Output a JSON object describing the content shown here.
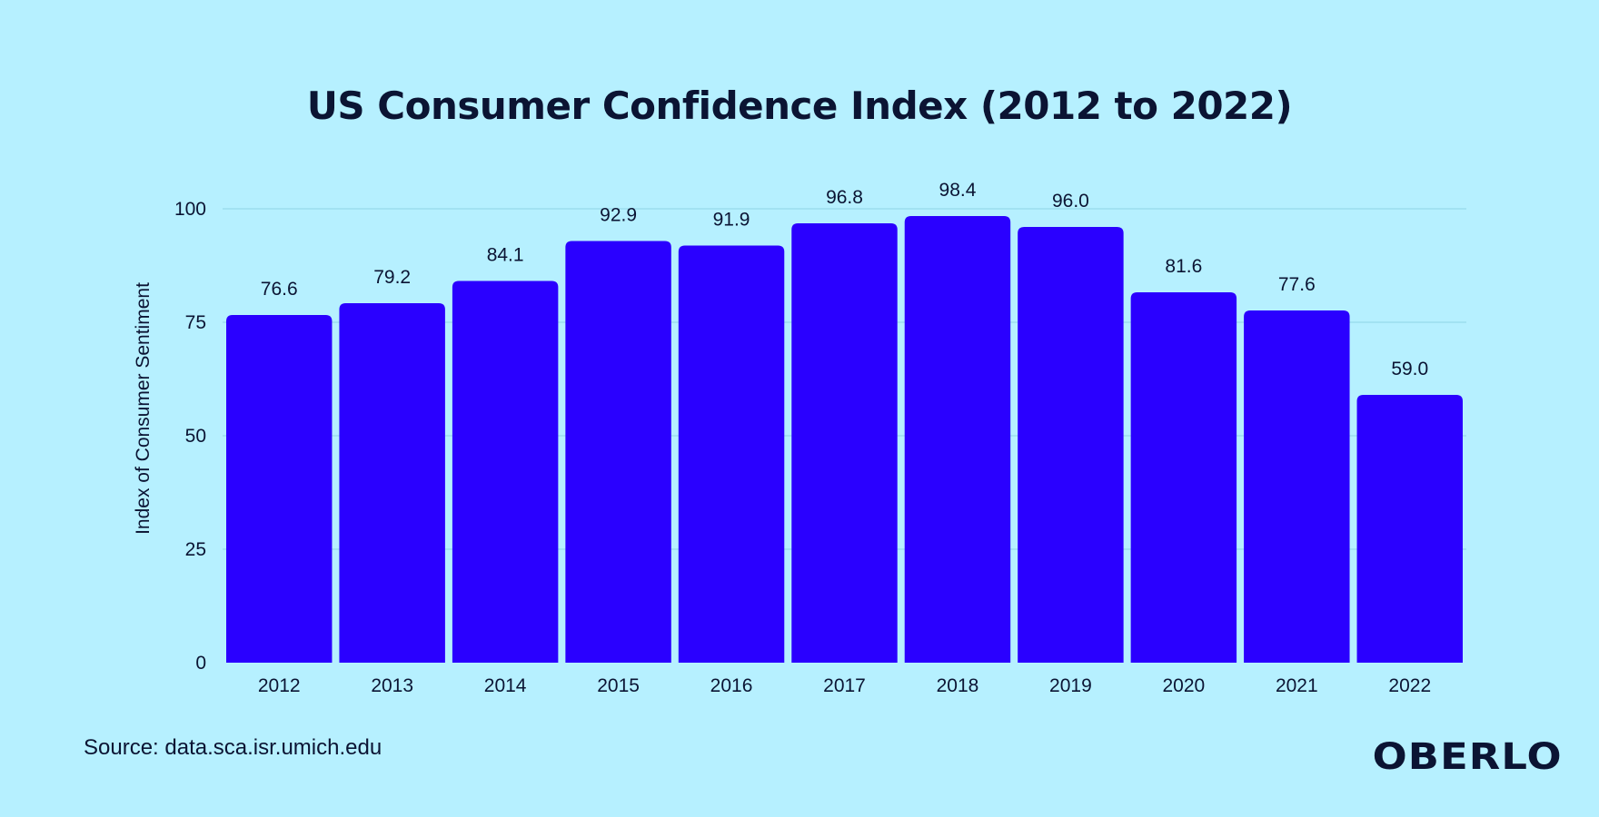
{
  "page": {
    "title": "US Consumer Confidence Index (2012 to 2022)",
    "source": "Source: data.sca.isr.umich.edu",
    "brand": "OBERLO"
  },
  "colors": {
    "background": "#b6f0ff",
    "bar": "#2a00ff",
    "text": "#0b1433",
    "grid": "#8fd3e6"
  },
  "chart_data": {
    "type": "bar",
    "title": "US Consumer Confidence Index (2012 to 2022)",
    "xlabel": "",
    "ylabel": "Index of Consumer Sentiment",
    "categories": [
      "2012",
      "2013",
      "2014",
      "2015",
      "2016",
      "2017",
      "2018",
      "2019",
      "2020",
      "2021",
      "2022"
    ],
    "values": [
      76.6,
      79.2,
      84.1,
      92.9,
      91.9,
      96.8,
      98.4,
      96.0,
      81.6,
      77.6,
      59.0
    ],
    "value_labels": [
      "76.6",
      "79.2",
      "84.1",
      "92.9",
      "91.9",
      "96.8",
      "98.4",
      "96.0",
      "81.6",
      "77.6",
      "59.0"
    ],
    "ylim": [
      0,
      100
    ],
    "yticks": [
      0,
      25,
      50,
      75,
      100
    ],
    "grid": true,
    "legend": "none"
  }
}
